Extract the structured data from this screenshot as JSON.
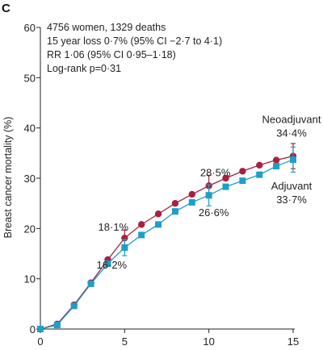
{
  "chart_data": {
    "type": "line",
    "panel_label": "C",
    "annotations": [
      "4756 women, 1329 deaths",
      "15 year loss 0·7% (95% CI −2·7 to 4·1)",
      "RR 1·06 (95% CI 0·95–1·18)",
      "Log-rank p=0·31"
    ],
    "ylabel": "Breast cancer mortality (%)",
    "xlabel": "",
    "xlim": [
      0,
      15
    ],
    "ylim": [
      0,
      60
    ],
    "xticks": [
      0,
      5,
      10,
      15
    ],
    "yticks": [
      0,
      10,
      20,
      30,
      40,
      50,
      60
    ],
    "xtick_labels": [
      "0",
      "5",
      "10",
      "15"
    ],
    "ytick_labels": [
      "0",
      "10",
      "20",
      "30",
      "40",
      "50",
      "60"
    ],
    "x": [
      0,
      1,
      2,
      3,
      4,
      5,
      6,
      7,
      8,
      9,
      10,
      11,
      12,
      13,
      14,
      15
    ],
    "series": [
      {
        "name": "Neoadjuvant",
        "color": "#a8213f",
        "marker": "circle",
        "values": [
          0,
          1.0,
          4.8,
          9.2,
          13.8,
          18.1,
          20.8,
          22.9,
          25.0,
          26.8,
          28.5,
          30.0,
          31.4,
          32.6,
          33.6,
          34.4
        ],
        "error_bars": [
          {
            "x": 5,
            "low": 16.5,
            "high": 19.7
          },
          {
            "x": 10,
            "low": 26.4,
            "high": 30.6
          },
          {
            "x": 15,
            "low": 31.9,
            "high": 36.9
          }
        ],
        "value_labels": [
          {
            "x": 5,
            "text": "18·1%"
          },
          {
            "x": 10,
            "text": "28·5%"
          },
          {
            "x": 15,
            "text": "34·4%"
          }
        ]
      },
      {
        "name": "Adjuvant",
        "color": "#1e9ec8",
        "marker": "square",
        "values": [
          0,
          0.8,
          4.6,
          9.0,
          13.0,
          16.2,
          18.7,
          20.8,
          23.4,
          25.2,
          26.6,
          28.3,
          29.5,
          30.7,
          32.4,
          33.7
        ],
        "error_bars": [
          {
            "x": 5,
            "low": 14.6,
            "high": 17.8
          },
          {
            "x": 10,
            "low": 24.5,
            "high": 28.7
          },
          {
            "x": 15,
            "low": 31.2,
            "high": 36.2
          }
        ],
        "value_labels": [
          {
            "x": 5,
            "text": "16·2%"
          },
          {
            "x": 10,
            "text": "26·6%"
          },
          {
            "x": 15,
            "text": "33·7%"
          }
        ]
      }
    ]
  }
}
